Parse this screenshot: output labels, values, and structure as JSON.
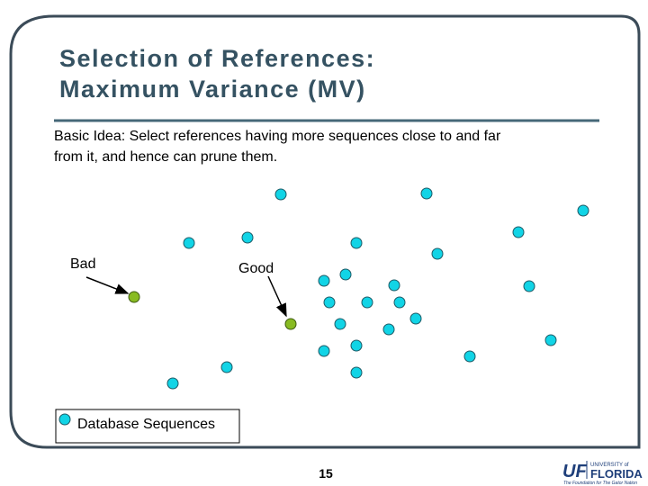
{
  "slide": {
    "title": [
      "Selection of References:",
      "Maximum Variance (MV)"
    ],
    "body": [
      "Basic Idea: Select references having more sequences close to and far",
      "from it, and hence can prune them."
    ],
    "labels": {
      "bad": "Bad",
      "good": "Good"
    },
    "legend": "Database Sequences",
    "page_number": "15",
    "logo": {
      "mark": "UF",
      "university": "UNIVERSITY of",
      "name": "FLORIDA",
      "tagline": "The Foundation for The Gator Nation"
    }
  }
}
